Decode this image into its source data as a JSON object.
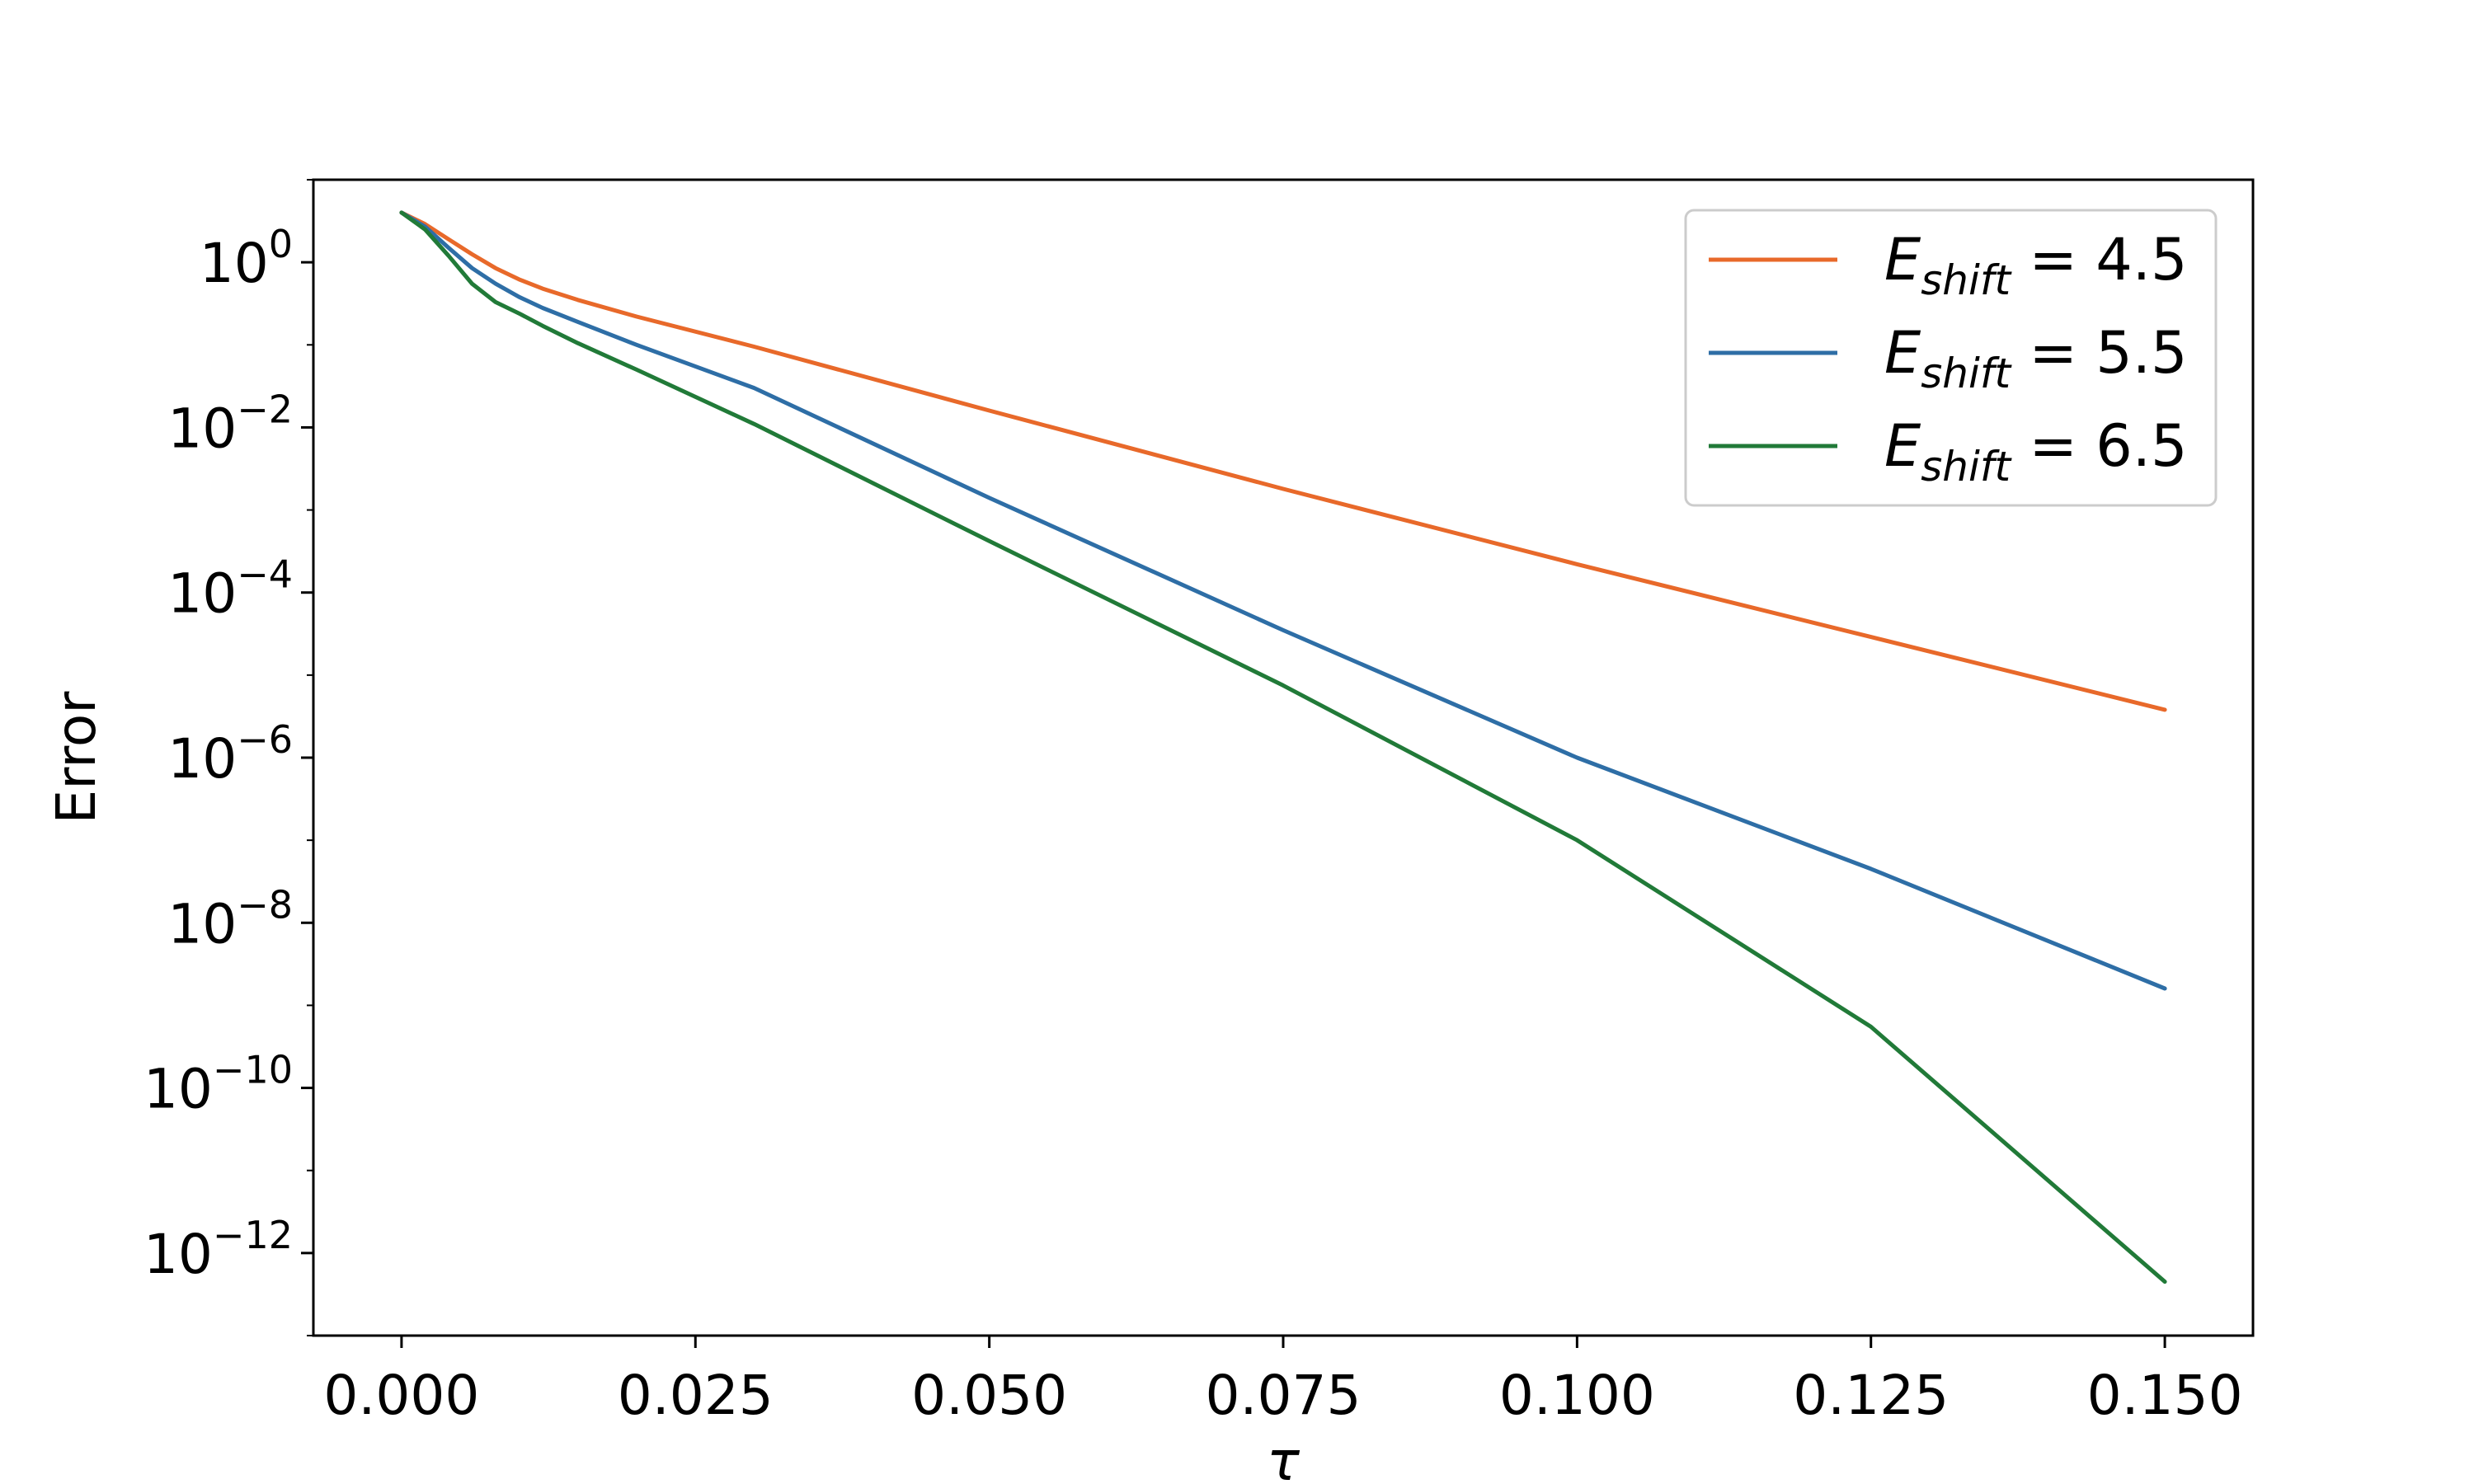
{
  "chart_data": {
    "type": "line",
    "xlabel": "τ",
    "ylabel": "Error",
    "y_scale": "log",
    "xlim": [
      -0.0075,
      0.1575
    ],
    "ylim": [
      1e-13,
      10.0
    ],
    "x_ticks": [
      {
        "value": 0.0,
        "label": "0.000"
      },
      {
        "value": 0.025,
        "label": "0.025"
      },
      {
        "value": 0.05,
        "label": "0.050"
      },
      {
        "value": 0.075,
        "label": "0.075"
      },
      {
        "value": 0.1,
        "label": "0.100"
      },
      {
        "value": 0.125,
        "label": "0.125"
      },
      {
        "value": 0.15,
        "label": "0.150"
      }
    ],
    "y_ticks": [
      {
        "value": 1,
        "base": "10",
        "exp": "0"
      },
      {
        "value": 0.01,
        "base": "10",
        "exp": "−2"
      },
      {
        "value": 0.0001,
        "base": "10",
        "exp": "−4"
      },
      {
        "value": 1e-06,
        "base": "10",
        "exp": "−6"
      },
      {
        "value": 1e-08,
        "base": "10",
        "exp": "−8"
      },
      {
        "value": 1e-10,
        "base": "10",
        "exp": "−10"
      },
      {
        "value": 1e-12,
        "base": "10",
        "exp": "−12"
      }
    ],
    "grid": false,
    "legend_position": "top-right",
    "series": [
      {
        "name": "E_shift = 4.5",
        "legend": {
          "main": "E",
          "sub": "shift",
          "rest": " = 4.5"
        },
        "color": "#e8692a",
        "x": [
          0.0,
          0.002,
          0.004,
          0.006,
          0.008,
          0.01,
          0.012,
          0.015,
          0.02,
          0.03,
          0.05,
          0.075,
          0.1,
          0.125,
          0.15
        ],
        "y": [
          4.0,
          2.9,
          1.9,
          1.25,
          0.85,
          0.62,
          0.48,
          0.35,
          0.22,
          0.095,
          0.016,
          0.0018,
          0.00022,
          2.9e-05,
          3.8e-06
        ]
      },
      {
        "name": "E_shift = 5.5",
        "legend": {
          "main": "E",
          "sub": "shift",
          "rest": " = 5.5"
        },
        "color": "#2e6ea6",
        "x": [
          0.0,
          0.002,
          0.004,
          0.006,
          0.008,
          0.01,
          0.012,
          0.015,
          0.02,
          0.03,
          0.05,
          0.075,
          0.1,
          0.125,
          0.15
        ],
        "y": [
          4.0,
          2.7,
          1.5,
          0.85,
          0.55,
          0.38,
          0.28,
          0.19,
          0.1,
          0.03,
          0.0014,
          3.5e-05,
          1e-06,
          4.5e-08,
          1.6e-09
        ]
      },
      {
        "name": "E_shift = 6.5",
        "legend": {
          "main": "E",
          "sub": "shift",
          "rest": " = 6.5"
        },
        "color": "#217a38",
        "x": [
          0.0,
          0.002,
          0.004,
          0.006,
          0.008,
          0.01,
          0.012,
          0.015,
          0.02,
          0.03,
          0.05,
          0.075,
          0.1,
          0.125,
          0.15
        ],
        "y": [
          4.0,
          2.5,
          1.2,
          0.55,
          0.33,
          0.24,
          0.17,
          0.105,
          0.05,
          0.011,
          0.00042,
          7.5e-06,
          1e-07,
          5.5e-10,
          4.5e-13
        ]
      }
    ]
  }
}
